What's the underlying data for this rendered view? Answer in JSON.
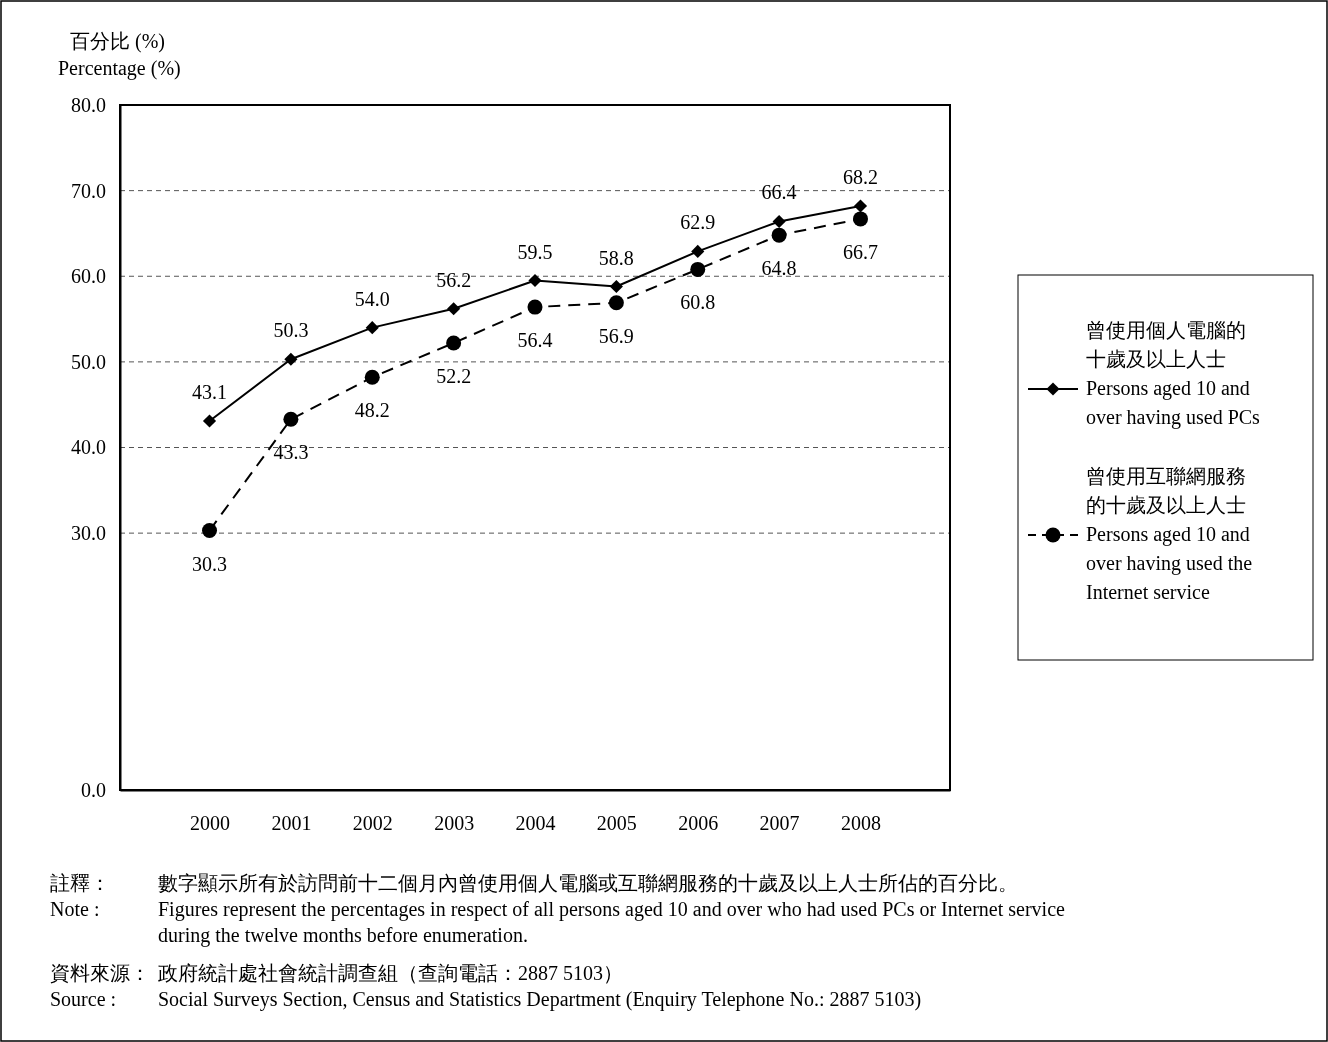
{
  "chart_data": {
    "type": "line",
    "ylabel": "百分比 (%)\nPercentage (%)",
    "categories": [
      "2000",
      "2001",
      "2002",
      "2003",
      "2004",
      "2005",
      "2006",
      "2007",
      "2008"
    ],
    "series": [
      {
        "name": "曾使用個人電腦的十歲及以上人士 Persons aged 10 and over having used PCs",
        "color": "#000000",
        "marker": "diamond",
        "line_style": "solid",
        "values": [
          43.1,
          50.3,
          54.0,
          56.2,
          59.5,
          58.8,
          62.9,
          66.4,
          68.2
        ],
        "value_labels": [
          "43.1",
          "50.3",
          "54.0",
          "56.2",
          "59.5",
          "58.8",
          "62.9",
          "66.4",
          "68.2"
        ]
      },
      {
        "name": "曾使用互聯網服務的十歲及以上人士 Persons aged 10 and over having used the Internet service",
        "color": "#000000",
        "marker": "circle",
        "line_style": "dashed",
        "values": [
          30.3,
          43.3,
          48.2,
          52.2,
          56.4,
          56.9,
          60.8,
          64.8,
          66.7
        ],
        "value_labels": [
          "30.3",
          "43.3",
          "48.2",
          "52.2",
          "56.4",
          "56.9",
          "60.8",
          "64.8",
          "66.7"
        ]
      }
    ],
    "ylim": [
      0,
      80
    ],
    "yticks": [
      {
        "value": 0,
        "label": "0.0"
      },
      {
        "value": 30,
        "label": "30.0"
      },
      {
        "value": 40,
        "label": "40.0"
      },
      {
        "value": 50,
        "label": "50.0"
      },
      {
        "value": 60,
        "label": "60.0"
      },
      {
        "value": 70,
        "label": "70.0"
      },
      {
        "value": 80,
        "label": "80.0"
      }
    ],
    "grid": "y",
    "legend": "right",
    "annotations": [
      "註釋：",
      "數字顯示所有於訪問前十二個月內曾使用個人電腦或互聯網服務的十歲及以上人士所佔的百分比。",
      "Note :",
      "Figures represent the percentages in respect of all persons aged 10 and over who had used PCs or Internet service during the twelve months before enumeration.",
      "資料來源：",
      "政府統計處社會統計調查組（查詢電話：2887 5103）",
      "Source :",
      "Social Surveys Section, Census and Statistics Department (Enquiry Telephone No.: 2887 5103)"
    ]
  }
}
